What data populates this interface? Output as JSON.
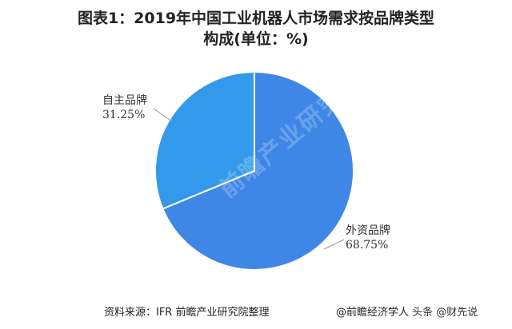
{
  "title_line1": "图表1：2019年中国工业机器人市场需求按品牌类型",
  "title_line2": "构成(单位：%)",
  "chart_data": {
    "type": "pie",
    "slices": [
      {
        "label": "外资品牌",
        "value": 68.75,
        "display": "68.75%",
        "color": "#3f87e6"
      },
      {
        "label": "自主品牌",
        "value": 31.25,
        "display": "31.25%",
        "color": "#3399ea"
      }
    ]
  },
  "footer": {
    "source": "资料来源：IFR 前瞻产业研究院整理",
    "brand": "@前瞻经济学人",
    "platform": "头条 @财先说"
  },
  "watermark": "前瞻产业研究院"
}
